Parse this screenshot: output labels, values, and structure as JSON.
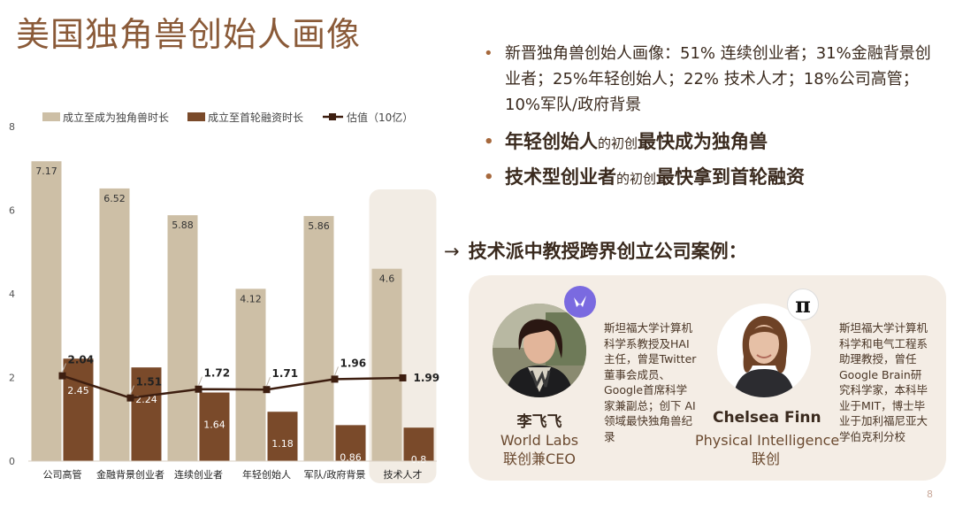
{
  "title": "美国独角兽创始人画像",
  "bullets": {
    "b1": "新晋独角兽创始人画像：51% 连续创业者；31%金融背景创业者；25%年轻创始人；22% 技术人才；18%公司高管；10%军队/政府背景",
    "b2": {
      "a": "年轻创始人",
      "b": "的初创",
      "c": "最快成为独角兽"
    },
    "b3": {
      "a": "技术型创业者",
      "b": "的初创",
      "c": "最快拿到首轮融资"
    }
  },
  "case_heading": {
    "arrow": "→",
    "text": "技术派中教授跨界创立公司案例："
  },
  "people": [
    {
      "name": "李飞飞",
      "org_line1": "World Labs",
      "org_line2": "联创兼CEO",
      "bio": "斯坦福大学计算机科学系教授及HAI主任，曾是Twitter董事会成员、Google首席科学家兼副总；创下 AI 领域最快独角兽纪录",
      "logo_icon": "world-labs-logo-icon"
    },
    {
      "name": "Chelsea Finn",
      "org_line1": "Physical Intelligence",
      "org_line2": "联创",
      "bio": "斯坦福大学计算机科学和电气工程系助理教授，曾任Google Brain研究科学家，本科毕业于MIT，博士毕业于加利福尼亚大学伯克利分校",
      "logo_icon": "pi-logo-icon",
      "logo_text": "π"
    }
  ],
  "page_number": "8",
  "colors": {
    "bar1": "#cdbfa6",
    "bar2": "#7a4a2a",
    "line": "#3d1e10",
    "highlight": "#f2ece4",
    "title": "#8a5a38"
  },
  "chart_data": {
    "type": "bar",
    "categories": [
      "公司高管",
      "金融背景创业者",
      "连续创业者",
      "年轻创始人",
      "军队/政府背景",
      "技术人才"
    ],
    "series": [
      {
        "name": "成立至成为独角兽时长",
        "type": "bar",
        "values": [
          7.17,
          6.52,
          5.88,
          4.12,
          5.86,
          4.6
        ]
      },
      {
        "name": "成立至首轮融资时长",
        "type": "bar",
        "values": [
          2.45,
          2.24,
          1.64,
          1.18,
          0.86,
          0.8
        ]
      },
      {
        "name": "估值（10亿）",
        "type": "line",
        "values": [
          2.04,
          1.51,
          1.72,
          1.71,
          1.96,
          1.99
        ]
      }
    ],
    "ylim": [
      0,
      8
    ],
    "yticks": [
      0,
      2,
      4,
      6,
      8
    ],
    "highlight_category": "技术人才",
    "legend_position": "top",
    "grid": false
  }
}
